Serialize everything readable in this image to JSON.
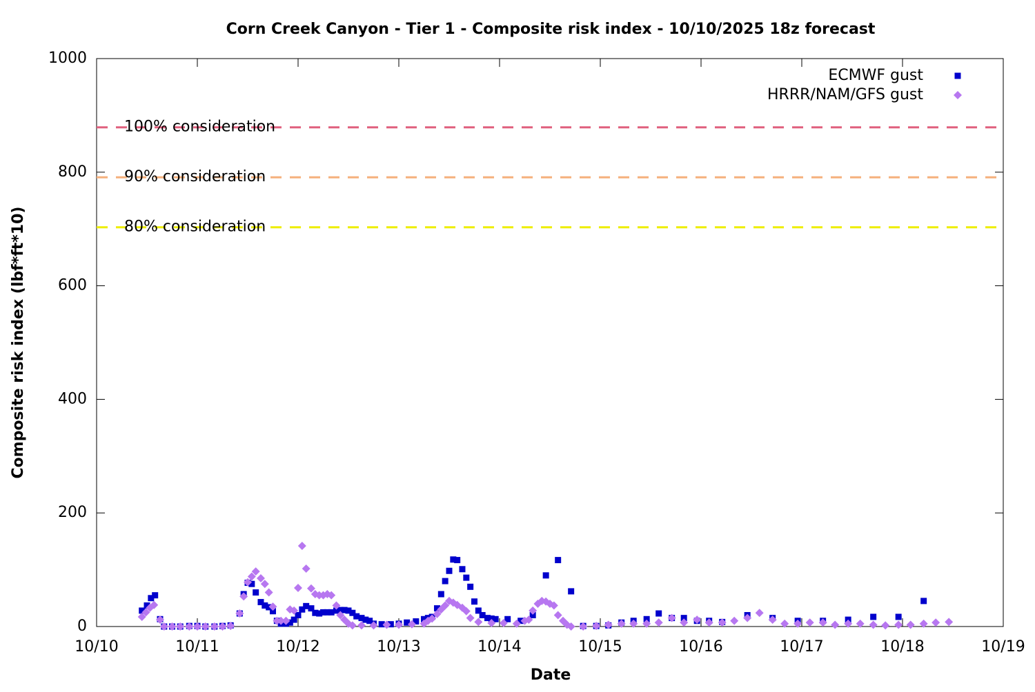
{
  "chart_data": {
    "type": "scatter",
    "title": "Corn Creek Canyon - Tier 1 - Composite risk index - 10/10/2025 18z forecast",
    "x_label": "Date",
    "y_label": "Composite risk index (lbf*ft*10)",
    "xlim": [
      10,
      19
    ],
    "xticks": [
      {
        "value": 10,
        "label": "10/10"
      },
      {
        "value": 11,
        "label": "10/11"
      },
      {
        "value": 12,
        "label": "10/12"
      },
      {
        "value": 13,
        "label": "10/13"
      },
      {
        "value": 14,
        "label": "10/14"
      },
      {
        "value": 15,
        "label": "10/15"
      },
      {
        "value": 16,
        "label": "10/16"
      },
      {
        "value": 17,
        "label": "10/17"
      },
      {
        "value": 18,
        "label": "10/18"
      },
      {
        "value": 19,
        "label": "10/19"
      }
    ],
    "ylim": [
      0,
      1000
    ],
    "yticks": [
      0,
      200,
      400,
      600,
      800,
      1000
    ],
    "grid": false,
    "legend": "top-right",
    "reference_lines": [
      {
        "label": "100% consideration",
        "value": 879,
        "color": "#e0607e"
      },
      {
        "label": "90% consideration",
        "value": 791,
        "color": "#f5b07c"
      },
      {
        "label": "80% consideration",
        "value": 703,
        "color": "#eeee00"
      }
    ],
    "series": [
      {
        "name": "ECMWF gust",
        "color": "#0000cc",
        "marker": "square",
        "x": [
          10.45,
          10.5,
          10.54,
          10.58,
          10.63,
          10.67,
          10.75,
          10.83,
          10.92,
          11.0,
          11.08,
          11.17,
          11.25,
          11.33,
          11.42,
          11.46,
          11.5,
          11.54,
          11.58,
          11.63,
          11.67,
          11.71,
          11.75,
          11.79,
          11.83,
          11.88,
          11.92,
          11.96,
          12.0,
          12.04,
          12.08,
          12.13,
          12.17,
          12.21,
          12.25,
          12.29,
          12.33,
          12.38,
          12.42,
          12.46,
          12.5,
          12.54,
          12.58,
          12.63,
          12.67,
          12.71,
          12.75,
          12.83,
          12.92,
          13.0,
          13.08,
          13.17,
          13.25,
          13.29,
          13.33,
          13.38,
          13.42,
          13.46,
          13.5,
          13.54,
          13.58,
          13.63,
          13.67,
          13.71,
          13.75,
          13.79,
          13.83,
          13.88,
          13.92,
          13.96,
          14.08,
          14.21,
          14.33,
          14.46,
          14.58,
          14.71,
          14.83,
          14.96,
          15.08,
          15.21,
          15.33,
          15.46,
          15.58,
          15.71,
          15.83,
          15.96,
          16.08,
          16.21,
          16.46,
          16.71,
          16.96,
          17.21,
          17.46,
          17.71,
          17.96,
          18.21
        ],
        "values": [
          28,
          37,
          50,
          55,
          13,
          0,
          0,
          0,
          1,
          1,
          0,
          0,
          1,
          2,
          23,
          57,
          77,
          75,
          60,
          43,
          37,
          34,
          27,
          10,
          5,
          5,
          7,
          12,
          20,
          30,
          36,
          32,
          24,
          23,
          25,
          25,
          25,
          28,
          29,
          29,
          28,
          24,
          18,
          15,
          12,
          10,
          5,
          4,
          4,
          5,
          7,
          9,
          13,
          15,
          17,
          32,
          57,
          80,
          98,
          118,
          117,
          101,
          86,
          70,
          44,
          28,
          20,
          15,
          14,
          13,
          13,
          10,
          20,
          90,
          117,
          62,
          1,
          1,
          2,
          7,
          10,
          13,
          23,
          15,
          15,
          10,
          10,
          8,
          20,
          15,
          10,
          10,
          12,
          17,
          17,
          45
        ]
      },
      {
        "name": "HRRR/NAM/GFS gust",
        "color": "#b777f0",
        "marker": "diamond",
        "x": [
          10.45,
          10.49,
          10.53,
          10.57,
          10.63,
          10.67,
          10.75,
          10.83,
          10.92,
          11.0,
          11.08,
          11.17,
          11.25,
          11.33,
          11.42,
          11.46,
          11.5,
          11.54,
          11.58,
          11.63,
          11.67,
          11.71,
          11.75,
          11.79,
          11.83,
          11.88,
          11.92,
          11.96,
          12.0,
          12.04,
          12.08,
          12.13,
          12.17,
          12.21,
          12.25,
          12.29,
          12.33,
          12.38,
          12.42,
          12.46,
          12.5,
          12.54,
          12.63,
          12.75,
          12.88,
          13.0,
          13.13,
          13.25,
          13.29,
          13.33,
          13.38,
          13.42,
          13.46,
          13.5,
          13.54,
          13.58,
          13.63,
          13.67,
          13.71,
          13.79,
          13.92,
          14.04,
          14.17,
          14.25,
          14.29,
          14.33,
          14.38,
          14.42,
          14.46,
          14.5,
          14.54,
          14.58,
          14.63,
          14.67,
          14.71,
          14.83,
          14.96,
          15.08,
          15.21,
          15.33,
          15.46,
          15.58,
          15.71,
          15.83,
          15.96,
          16.08,
          16.21,
          16.33,
          16.46,
          16.58,
          16.71,
          16.83,
          16.96,
          17.08,
          17.21,
          17.33,
          17.46,
          17.58,
          17.71,
          17.83,
          17.96,
          18.08,
          18.21,
          18.33,
          18.46
        ],
        "values": [
          17,
          25,
          33,
          38,
          12,
          0,
          0,
          0,
          0,
          0,
          0,
          0,
          0,
          1,
          23,
          53,
          78,
          88,
          97,
          85,
          75,
          60,
          35,
          10,
          10,
          10,
          30,
          28,
          68,
          142,
          102,
          67,
          57,
          55,
          55,
          57,
          55,
          37,
          20,
          12,
          5,
          2,
          2,
          2,
          3,
          3,
          4,
          5,
          10,
          14,
          22,
          30,
          37,
          45,
          42,
          38,
          33,
          27,
          15,
          8,
          6,
          6,
          5,
          10,
          12,
          28,
          40,
          45,
          44,
          40,
          37,
          20,
          10,
          3,
          0,
          0,
          1,
          3,
          5,
          5,
          5,
          7,
          15,
          7,
          12,
          7,
          7,
          10,
          15,
          24,
          12,
          5,
          5,
          7,
          7,
          3,
          5,
          5,
          3,
          2,
          3,
          3,
          5,
          7,
          8
        ]
      }
    ]
  }
}
